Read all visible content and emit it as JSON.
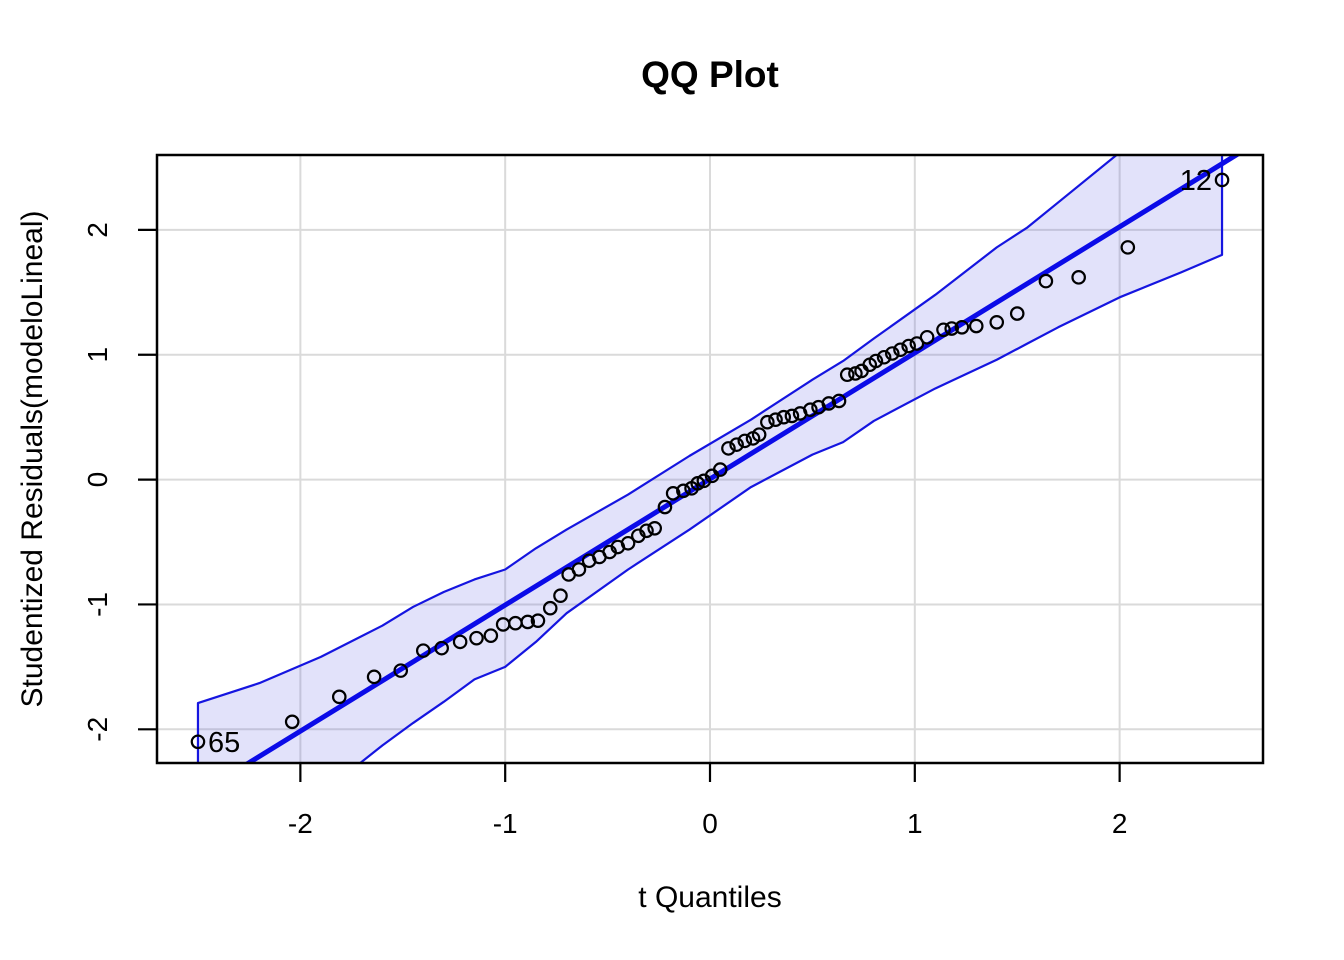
{
  "figure": {
    "title": "QQ Plot",
    "x_axis_label": "t Quantiles",
    "y_axis_label": "Studentized Residuals(modeloLineal)"
  },
  "chart_data": {
    "type": "scatter",
    "title": "QQ Plot",
    "xlabel": "t Quantiles",
    "ylabel": "Studentized Residuals(modeloLineal)",
    "xlim": [
      -2.7,
      2.7
    ],
    "ylim": [
      -2.27,
      2.6
    ],
    "x_ticks": [
      -2,
      -1,
      0,
      1,
      2
    ],
    "y_ticks": [
      -2,
      -1,
      0,
      1,
      2
    ],
    "grid": true,
    "legend_position": "none",
    "reference_line": {
      "slope": 1.01,
      "intercept": 0.005
    },
    "envelope": {
      "x": [
        -2.5,
        -2.2,
        -1.9,
        -1.6,
        -1.45,
        -1.3,
        -1.15,
        -1.0,
        -0.85,
        -0.7,
        -0.4,
        -0.1,
        0.2,
        0.5,
        0.65,
        0.8,
        1.1,
        1.4,
        1.55,
        1.7,
        2.0,
        2.3,
        2.5
      ],
      "upper": [
        -1.79,
        -1.63,
        -1.42,
        -1.17,
        -1.02,
        -0.9,
        -0.8,
        -0.72,
        -0.55,
        -0.4,
        -0.12,
        0.19,
        0.48,
        0.8,
        0.95,
        1.13,
        1.48,
        1.86,
        2.02,
        2.22,
        2.62,
        3.03,
        3.31
      ],
      "lower": [
        -3.31,
        -2.92,
        -2.52,
        -2.13,
        -1.95,
        -1.78,
        -1.6,
        -1.5,
        -1.3,
        -1.07,
        -0.72,
        -0.4,
        -0.06,
        0.2,
        0.3,
        0.47,
        0.73,
        0.96,
        1.09,
        1.22,
        1.46,
        1.66,
        1.8
      ]
    },
    "points": [
      [
        -2.5,
        -2.1
      ],
      [
        -2.04,
        -1.94
      ],
      [
        -1.81,
        -1.74
      ],
      [
        -1.64,
        -1.58
      ],
      [
        -1.51,
        -1.53
      ],
      [
        -1.4,
        -1.37
      ],
      [
        -1.31,
        -1.35
      ],
      [
        -1.22,
        -1.3
      ],
      [
        -1.14,
        -1.27
      ],
      [
        -1.07,
        -1.25
      ],
      [
        -1.01,
        -1.16
      ],
      [
        -0.95,
        -1.15
      ],
      [
        -0.89,
        -1.14
      ],
      [
        -0.84,
        -1.13
      ],
      [
        -0.78,
        -1.03
      ],
      [
        -0.73,
        -0.93
      ],
      [
        -0.69,
        -0.76
      ],
      [
        -0.64,
        -0.72
      ],
      [
        -0.59,
        -0.65
      ],
      [
        -0.54,
        -0.62
      ],
      [
        -0.49,
        -0.58
      ],
      [
        -0.45,
        -0.54
      ],
      [
        -0.4,
        -0.51
      ],
      [
        -0.35,
        -0.45
      ],
      [
        -0.31,
        -0.41
      ],
      [
        -0.27,
        -0.39
      ],
      [
        -0.22,
        -0.22
      ],
      [
        -0.18,
        -0.11
      ],
      [
        -0.13,
        -0.09
      ],
      [
        -0.09,
        -0.07
      ],
      [
        -0.06,
        -0.03
      ],
      [
        -0.03,
        -0.01
      ],
      [
        0.01,
        0.03
      ],
      [
        0.05,
        0.08
      ],
      [
        0.09,
        0.25
      ],
      [
        0.13,
        0.28
      ],
      [
        0.17,
        0.31
      ],
      [
        0.21,
        0.33
      ],
      [
        0.24,
        0.36
      ],
      [
        0.28,
        0.46
      ],
      [
        0.32,
        0.48
      ],
      [
        0.36,
        0.5
      ],
      [
        0.4,
        0.51
      ],
      [
        0.44,
        0.53
      ],
      [
        0.49,
        0.56
      ],
      [
        0.53,
        0.58
      ],
      [
        0.58,
        0.61
      ],
      [
        0.63,
        0.63
      ],
      [
        0.67,
        0.84
      ],
      [
        0.71,
        0.85
      ],
      [
        0.74,
        0.87
      ],
      [
        0.78,
        0.92
      ],
      [
        0.81,
        0.95
      ],
      [
        0.85,
        0.98
      ],
      [
        0.89,
        1.01
      ],
      [
        0.93,
        1.04
      ],
      [
        0.97,
        1.07
      ],
      [
        1.01,
        1.09
      ],
      [
        1.06,
        1.14
      ],
      [
        1.14,
        1.2
      ],
      [
        1.18,
        1.21
      ],
      [
        1.23,
        1.22
      ],
      [
        1.3,
        1.23
      ],
      [
        1.4,
        1.26
      ],
      [
        1.5,
        1.33
      ],
      [
        1.64,
        1.59
      ],
      [
        1.8,
        1.62
      ],
      [
        2.04,
        1.86
      ],
      [
        2.5,
        2.4
      ]
    ],
    "point_labels": [
      {
        "text": "65",
        "x": -2.5,
        "y": -2.1,
        "side": "right"
      },
      {
        "text": "12",
        "x": 2.5,
        "y": 2.4,
        "side": "left"
      }
    ],
    "colors": {
      "line": "#0B0BE8",
      "envelope_border": "#1515E0",
      "envelope_fill": "rgba(95,95,225,0.18)",
      "grid": "#DADADA",
      "axis": "#000000",
      "point_stroke": "#000000"
    }
  }
}
